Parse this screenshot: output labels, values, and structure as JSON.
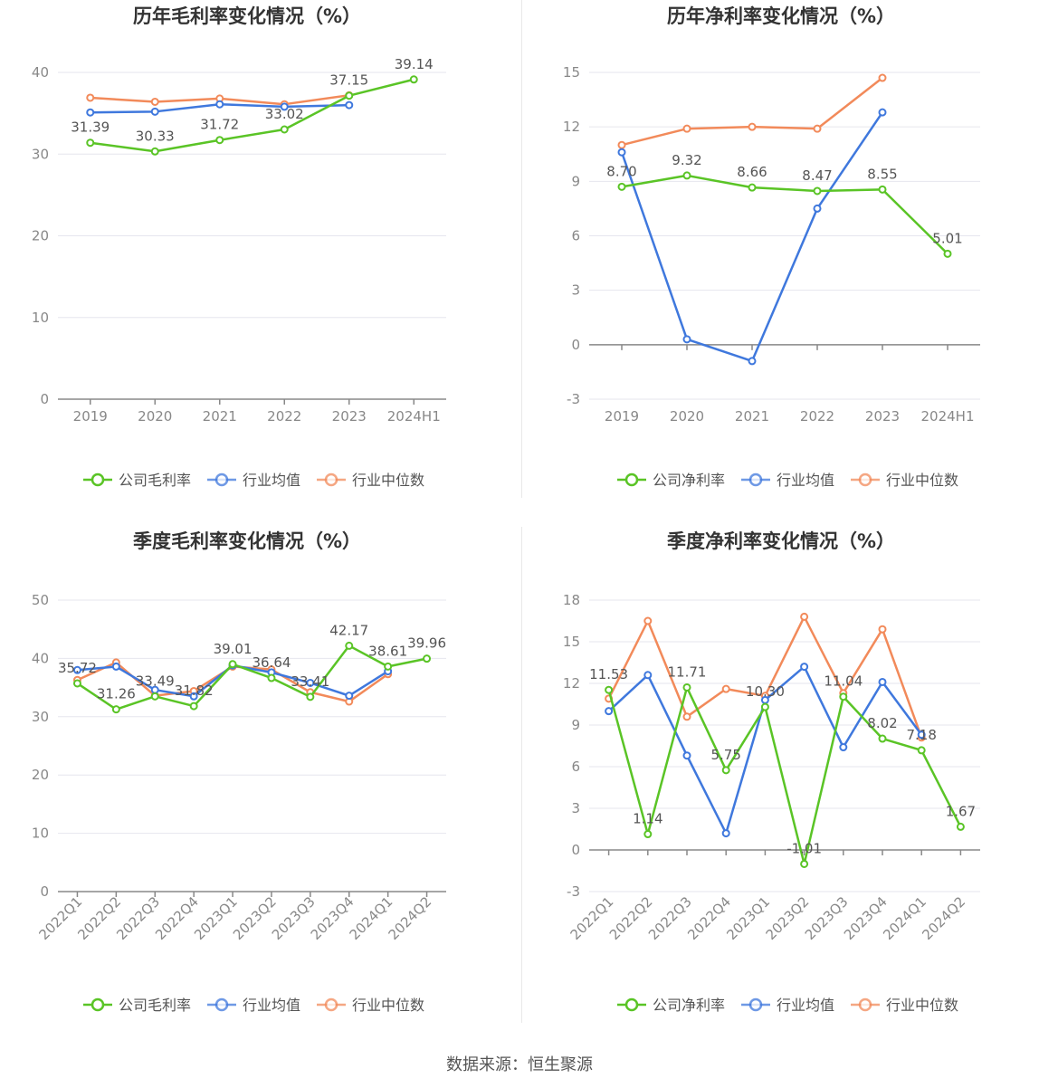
{
  "colors": {
    "company": "#5ac426",
    "industry_avg": "#3f78dd",
    "industry_median": "#f28a5a",
    "grid": "#e6e6ee",
    "axis": "#888888",
    "label": "#555555",
    "title": "#333333"
  },
  "source": "数据来源：恒生聚源",
  "chart_data": [
    {
      "type": "line",
      "title": "历年毛利率变化情况（%）",
      "categories": [
        "2019",
        "2020",
        "2021",
        "2022",
        "2023",
        "2024H1"
      ],
      "ylim": [
        0,
        40
      ],
      "yticks": [
        0,
        10,
        20,
        30,
        40
      ],
      "series": [
        {
          "name": "公司毛利率",
          "values": [
            31.39,
            30.33,
            31.72,
            33.02,
            37.15,
            39.14
          ],
          "labels": [
            "31.39",
            "30.33",
            "31.72",
            "33.02",
            "37.15",
            "39.14"
          ]
        },
        {
          "name": "行业均值",
          "values": [
            35.1,
            35.2,
            36.1,
            35.8,
            36.0,
            null
          ]
        },
        {
          "name": "行业中位数",
          "values": [
            36.9,
            36.4,
            36.8,
            36.1,
            37.2,
            null
          ]
        }
      ],
      "legend": "bottom",
      "grid": true
    },
    {
      "type": "line",
      "title": "历年净利率变化情况（%）",
      "categories": [
        "2019",
        "2020",
        "2021",
        "2022",
        "2023",
        "2024H1"
      ],
      "ylim": [
        -3,
        15
      ],
      "yticks": [
        -3,
        0,
        3,
        6,
        9,
        12,
        15
      ],
      "series": [
        {
          "name": "公司净利率",
          "values": [
            8.7,
            9.32,
            8.66,
            8.47,
            8.55,
            5.01
          ],
          "labels": [
            "8.70",
            "9.32",
            "8.66",
            "8.47",
            "8.55",
            "5.01"
          ]
        },
        {
          "name": "行业均值",
          "values": [
            10.6,
            0.3,
            -0.9,
            7.5,
            12.8,
            null
          ]
        },
        {
          "name": "行业中位数",
          "values": [
            11.0,
            11.9,
            12.0,
            11.9,
            14.7,
            null
          ]
        }
      ],
      "legend": "bottom",
      "grid": true
    },
    {
      "type": "line",
      "title": "季度毛利率变化情况（%）",
      "categories": [
        "2022Q1",
        "2022Q2",
        "2022Q3",
        "2022Q4",
        "2023Q1",
        "2023Q2",
        "2023Q3",
        "2023Q4",
        "2024Q1",
        "2024Q2"
      ],
      "ylim": [
        0,
        50
      ],
      "yticks": [
        0,
        10,
        20,
        30,
        40,
        50
      ],
      "series": [
        {
          "name": "公司毛利率",
          "values": [
            35.72,
            31.26,
            33.49,
            31.82,
            39.01,
            36.64,
            33.41,
            42.17,
            38.61,
            39.96
          ],
          "labels": [
            "35.72",
            "31.26",
            "33.49",
            "31.82",
            "39.01",
            "36.64",
            "33.41",
            "42.17",
            "38.61",
            "39.96"
          ]
        },
        {
          "name": "行业均值",
          "values": [
            38.0,
            38.6,
            34.6,
            33.5,
            38.8,
            37.6,
            35.8,
            33.6,
            37.8,
            null
          ]
        },
        {
          "name": "行业中位数",
          "values": [
            36.3,
            39.3,
            33.6,
            34.4,
            38.6,
            38.1,
            34.2,
            32.6,
            37.3,
            null
          ]
        }
      ],
      "legend": "bottom",
      "grid": true
    },
    {
      "type": "line",
      "title": "季度净利率变化情况（%）",
      "categories": [
        "2022Q1",
        "2022Q2",
        "2022Q3",
        "2022Q4",
        "2023Q1",
        "2023Q2",
        "2023Q3",
        "2023Q4",
        "2024Q1",
        "2024Q2"
      ],
      "ylim": [
        -3,
        18
      ],
      "yticks": [
        -3,
        0,
        3,
        6,
        9,
        12,
        15,
        18
      ],
      "series": [
        {
          "name": "公司净利率",
          "values": [
            11.53,
            1.14,
            11.71,
            5.75,
            10.3,
            -1.01,
            11.04,
            8.02,
            7.18,
            1.67
          ],
          "labels": [
            "11.53",
            "1.14",
            "11.71",
            "5.75",
            "10.30",
            "-1.01",
            "11.04",
            "8.02",
            "7.18",
            "1.67"
          ]
        },
        {
          "name": "行业均值",
          "values": [
            10.0,
            12.6,
            6.8,
            1.2,
            10.8,
            13.2,
            7.4,
            12.1,
            8.3,
            null
          ]
        },
        {
          "name": "行业中位数",
          "values": [
            10.9,
            16.5,
            9.6,
            11.6,
            11.1,
            16.8,
            11.3,
            15.9,
            8.1,
            null
          ]
        }
      ],
      "legend": "bottom",
      "grid": true
    }
  ]
}
